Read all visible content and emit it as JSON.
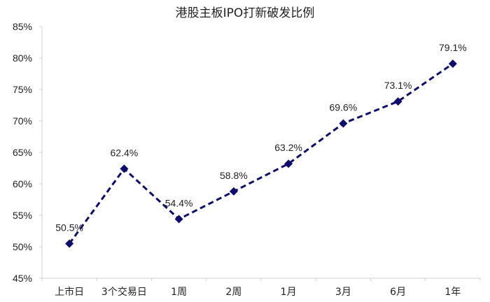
{
  "chart_data": {
    "type": "line",
    "title": "港股主板IPO打新破发比例",
    "xlabel": "",
    "ylabel": "",
    "categories": [
      "上市日",
      "3个交易日",
      "1周",
      "2周",
      "1月",
      "3月",
      "6月",
      "1年"
    ],
    "series": [
      {
        "name": "破发比例",
        "values": [
          50.5,
          62.4,
          54.4,
          58.8,
          63.2,
          69.6,
          73.1,
          79.1
        ],
        "color": "#0d0d6b",
        "line_style": "dashed",
        "marker": "diamond"
      }
    ],
    "data_labels": [
      "50.5%",
      "62.4%",
      "54.4%",
      "58.8%",
      "63.2%",
      "69.6%",
      "73.1%",
      "79.1%"
    ],
    "yticks": [
      "45%",
      "50%",
      "55%",
      "60%",
      "65%",
      "70%",
      "75%",
      "80%",
      "85%"
    ],
    "ylim": [
      45,
      85
    ],
    "grid": false,
    "legend": "none"
  }
}
